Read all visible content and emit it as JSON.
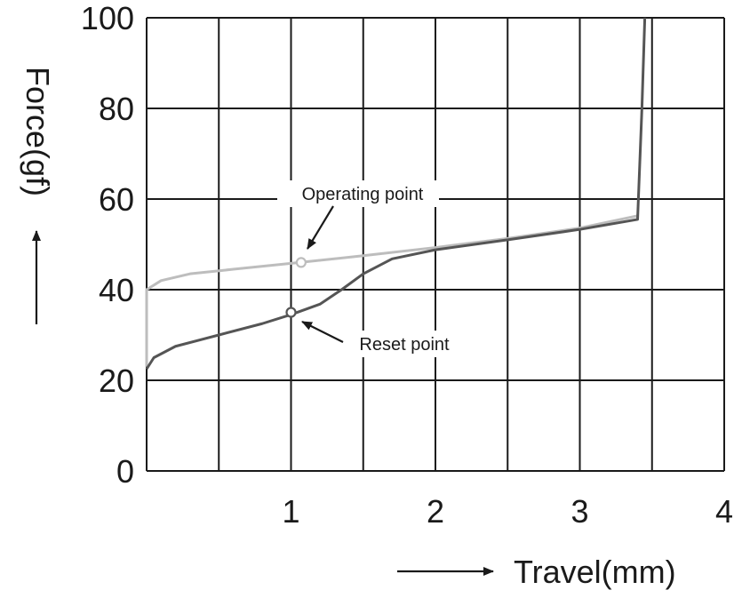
{
  "chart_data": {
    "type": "line",
    "xlabel": "Travel(mm)",
    "ylabel": "Force(gf)",
    "xlim": [
      0,
      4
    ],
    "ylim": [
      0,
      100
    ],
    "x_ticks": [
      1,
      2,
      3,
      4
    ],
    "y_ticks": [
      0,
      20,
      40,
      60,
      80,
      100
    ],
    "grid": true,
    "series": [
      {
        "color": "#bdbdbd",
        "points": [
          [
            0,
            23
          ],
          [
            0,
            40
          ],
          [
            0.1,
            42
          ],
          [
            0.3,
            43.5
          ],
          [
            0.6,
            44.5
          ],
          [
            1.0,
            45.8
          ],
          [
            1.5,
            47.5
          ],
          [
            2.0,
            49.3
          ],
          [
            2.5,
            51.3
          ],
          [
            3.0,
            53.6
          ],
          [
            3.4,
            56.3
          ]
        ]
      },
      {
        "color": "#555555",
        "points": [
          [
            0,
            22.5
          ],
          [
            0.05,
            25
          ],
          [
            0.2,
            27.5
          ],
          [
            0.5,
            30
          ],
          [
            0.8,
            32.5
          ],
          [
            1.0,
            34.5
          ],
          [
            1.2,
            36.8
          ],
          [
            1.35,
            40
          ],
          [
            1.5,
            43.5
          ],
          [
            1.7,
            46.8
          ],
          [
            2.0,
            48.8
          ],
          [
            2.5,
            51
          ],
          [
            3.0,
            53.3
          ],
          [
            3.4,
            55.5
          ],
          [
            3.43,
            80
          ],
          [
            3.45,
            100
          ]
        ]
      }
    ],
    "annotations": [
      {
        "text": "Operating point",
        "x": 1.07,
        "y": 46
      },
      {
        "text": "Reset point",
        "x": 1.0,
        "y": 35
      }
    ]
  }
}
